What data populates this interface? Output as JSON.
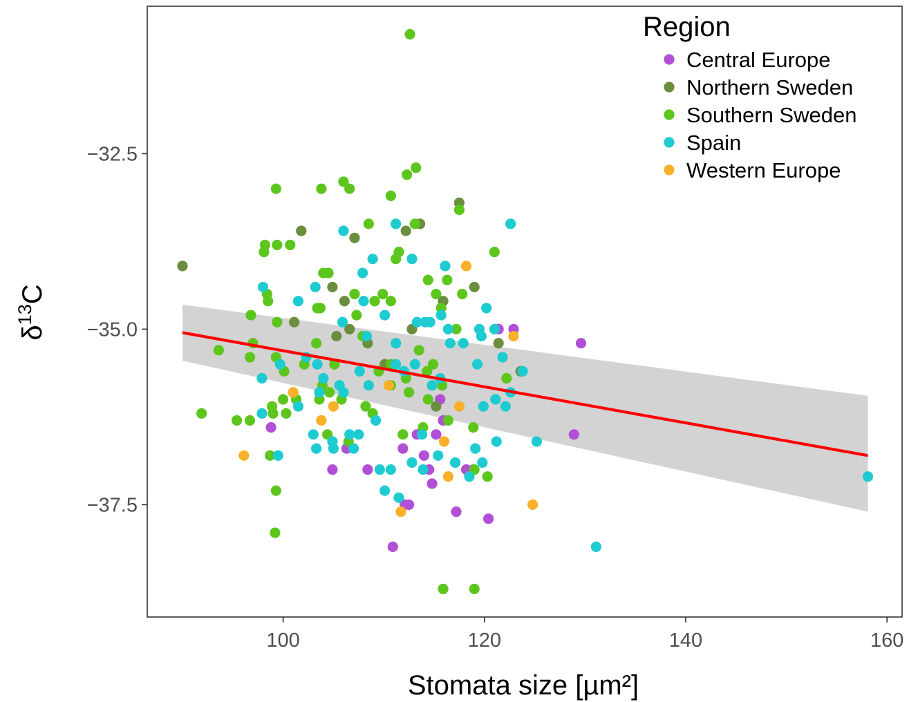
{
  "chart_data": {
    "type": "scatter",
    "title": "",
    "xlabel": "Stomata size [µm²]",
    "ylabel": {
      "base": "δ",
      "superscript": "13",
      "suffix": "C"
    },
    "xlim": [
      86.5,
      161.5
    ],
    "ylim": [
      -39.1,
      -30.4
    ],
    "x_ticks": [
      100,
      120,
      140,
      160
    ],
    "x_tick_labels": [
      "100",
      "120",
      "140",
      "160"
    ],
    "y_ticks": [
      -32.5,
      -35.0,
      -37.5
    ],
    "y_tick_labels": [
      "−32.5",
      "−35.0",
      "−37.5"
    ],
    "grid": false,
    "legend": {
      "title": "Region",
      "position": "top-right"
    },
    "series": [
      {
        "name": "Central Europe",
        "color": "#b14fd6",
        "points": [
          [
            98.8,
            -36.4
          ],
          [
            108.4,
            -37.0
          ],
          [
            104.9,
            -37.0
          ],
          [
            106.3,
            -36.7
          ],
          [
            110.9,
            -38.1
          ],
          [
            111.9,
            -36.7
          ],
          [
            112.1,
            -37.5
          ],
          [
            112.5,
            -37.5
          ],
          [
            113.3,
            -36.5
          ],
          [
            114.0,
            -36.8
          ],
          [
            114.8,
            -37.2
          ],
          [
            114.5,
            -37.0
          ],
          [
            115.2,
            -36.5
          ],
          [
            115.9,
            -36.3
          ],
          [
            115.6,
            -36.0
          ],
          [
            117.2,
            -37.6
          ],
          [
            118.2,
            -37.0
          ],
          [
            118.9,
            -37.0
          ],
          [
            120.4,
            -37.7
          ],
          [
            121.4,
            -35.0
          ],
          [
            122.9,
            -35.0
          ],
          [
            128.9,
            -36.5
          ],
          [
            129.6,
            -35.2
          ]
        ]
      },
      {
        "name": "Northern Sweden",
        "color": "#6b8e3e",
        "points": [
          [
            90.0,
            -34.1
          ],
          [
            101.8,
            -33.6
          ],
          [
            101.1,
            -34.9
          ],
          [
            104.9,
            -34.4
          ],
          [
            105.3,
            -35.1
          ],
          [
            106.1,
            -34.6
          ],
          [
            106.6,
            -35.0
          ],
          [
            107.1,
            -33.7
          ],
          [
            108.4,
            -35.2
          ],
          [
            110.1,
            -35.5
          ],
          [
            112.2,
            -33.6
          ],
          [
            112.8,
            -35.0
          ],
          [
            113.6,
            -33.5
          ],
          [
            115.2,
            -36.1
          ],
          [
            115.9,
            -34.6
          ],
          [
            117.5,
            -33.2
          ],
          [
            119.0,
            -34.4
          ],
          [
            121.4,
            -35.2
          ],
          [
            123.6,
            -35.6
          ]
        ]
      },
      {
        "name": "Southern Sweden",
        "color": "#5cc61c",
        "points": [
          [
            112.6,
            -30.8
          ],
          [
            99.3,
            -33.0
          ],
          [
            98.2,
            -33.8
          ],
          [
            98.1,
            -33.9
          ],
          [
            99.4,
            -33.8
          ],
          [
            100.7,
            -33.8
          ],
          [
            103.8,
            -33.0
          ],
          [
            106.0,
            -32.9
          ],
          [
            106.6,
            -33.0
          ],
          [
            110.7,
            -33.1
          ],
          [
            112.3,
            -32.8
          ],
          [
            113.2,
            -32.7
          ],
          [
            108.5,
            -33.5
          ],
          [
            111.5,
            -33.9
          ],
          [
            113.1,
            -33.5
          ],
          [
            117.5,
            -33.3
          ],
          [
            121.0,
            -33.9
          ],
          [
            98.4,
            -34.5
          ],
          [
            98.5,
            -34.6
          ],
          [
            96.8,
            -34.8
          ],
          [
            99.4,
            -34.9
          ],
          [
            104.0,
            -34.2
          ],
          [
            104.5,
            -34.2
          ],
          [
            107.1,
            -34.5
          ],
          [
            107.3,
            -34.8
          ],
          [
            109.1,
            -34.6
          ],
          [
            109.9,
            -34.5
          ],
          [
            110.7,
            -34.6
          ],
          [
            111.2,
            -34.0
          ],
          [
            114.4,
            -34.3
          ],
          [
            115.2,
            -34.5
          ],
          [
            115.7,
            -34.7
          ],
          [
            116.3,
            -34.3
          ],
          [
            117.8,
            -34.5
          ],
          [
            103.4,
            -34.7
          ],
          [
            103.7,
            -34.7
          ],
          [
            97.0,
            -35.2
          ],
          [
            93.6,
            -35.3
          ],
          [
            96.7,
            -35.4
          ],
          [
            99.3,
            -35.4
          ],
          [
            100.1,
            -35.6
          ],
          [
            102.1,
            -35.5
          ],
          [
            103.3,
            -35.2
          ],
          [
            103.9,
            -35.8
          ],
          [
            104.6,
            -35.9
          ],
          [
            105.1,
            -35.5
          ],
          [
            107.9,
            -35.1
          ],
          [
            109.5,
            -35.6
          ],
          [
            110.7,
            -35.5
          ],
          [
            112.2,
            -35.7
          ],
          [
            113.5,
            -35.3
          ],
          [
            114.3,
            -35.6
          ],
          [
            114.9,
            -35.5
          ],
          [
            115.8,
            -35.8
          ],
          [
            117.2,
            -35.0
          ],
          [
            122.2,
            -35.7
          ],
          [
            100.0,
            -36.0
          ],
          [
            98.9,
            -36.1
          ],
          [
            101.3,
            -36.0
          ],
          [
            103.6,
            -36.0
          ],
          [
            105.8,
            -36.0
          ],
          [
            108.2,
            -36.1
          ],
          [
            108.9,
            -36.2
          ],
          [
            110.7,
            -35.8
          ],
          [
            112.5,
            -35.9
          ],
          [
            114.4,
            -36.0
          ],
          [
            116.4,
            -36.3
          ],
          [
            118.9,
            -36.4
          ],
          [
            99.0,
            -36.2
          ],
          [
            96.7,
            -36.3
          ],
          [
            95.4,
            -36.3
          ],
          [
            91.9,
            -36.2
          ],
          [
            100.3,
            -36.2
          ],
          [
            104.4,
            -36.5
          ],
          [
            106.5,
            -36.6
          ],
          [
            111.9,
            -36.5
          ],
          [
            113.9,
            -36.4
          ],
          [
            98.7,
            -36.8
          ],
          [
            99.3,
            -37.3
          ],
          [
            99.2,
            -37.9
          ],
          [
            119.0,
            -37.0
          ],
          [
            120.3,
            -37.1
          ],
          [
            115.9,
            -38.7
          ],
          [
            119.0,
            -38.7
          ]
        ]
      },
      {
        "name": "Spain",
        "color": "#1ecbd0",
        "points": [
          [
            122.6,
            -33.5
          ],
          [
            111.2,
            -33.5
          ],
          [
            106.0,
            -33.6
          ],
          [
            108.9,
            -34.0
          ],
          [
            112.8,
            -34.0
          ],
          [
            116.1,
            -34.1
          ],
          [
            98.0,
            -34.4
          ],
          [
            101.5,
            -34.6
          ],
          [
            103.2,
            -34.4
          ],
          [
            107.9,
            -34.2
          ],
          [
            108.0,
            -34.6
          ],
          [
            110.1,
            -34.8
          ],
          [
            113.3,
            -34.9
          ],
          [
            114.1,
            -34.9
          ],
          [
            114.6,
            -34.9
          ],
          [
            115.7,
            -34.8
          ],
          [
            116.6,
            -35.2
          ],
          [
            119.5,
            -35.0
          ],
          [
            119.7,
            -35.1
          ],
          [
            120.2,
            -34.7
          ],
          [
            121.0,
            -35.0
          ],
          [
            121.8,
            -35.4
          ],
          [
            97.9,
            -35.7
          ],
          [
            99.7,
            -35.5
          ],
          [
            101.5,
            -36.1
          ],
          [
            102.3,
            -35.4
          ],
          [
            103.4,
            -35.5
          ],
          [
            103.6,
            -35.9
          ],
          [
            104.0,
            -35.7
          ],
          [
            105.9,
            -34.9
          ],
          [
            105.6,
            -35.8
          ],
          [
            106.0,
            -35.9
          ],
          [
            107.6,
            -35.6
          ],
          [
            108.3,
            -35.1
          ],
          [
            108.5,
            -35.8
          ],
          [
            109.2,
            -36.3
          ],
          [
            111.2,
            -35.2
          ],
          [
            111.2,
            -35.5
          ],
          [
            112.0,
            -35.6
          ],
          [
            113.1,
            -35.5
          ],
          [
            113.8,
            -36.5
          ],
          [
            114.8,
            -35.8
          ],
          [
            115.6,
            -35.7
          ],
          [
            116.4,
            -35.0
          ],
          [
            117.9,
            -35.2
          ],
          [
            119.3,
            -35.5
          ],
          [
            119.9,
            -36.1
          ],
          [
            121.1,
            -36.0
          ],
          [
            122.1,
            -36.1
          ],
          [
            122.6,
            -35.9
          ],
          [
            123.8,
            -35.6
          ],
          [
            97.9,
            -36.2
          ],
          [
            99.5,
            -36.8
          ],
          [
            103.0,
            -36.5
          ],
          [
            103.3,
            -36.7
          ],
          [
            104.9,
            -36.6
          ],
          [
            105.0,
            -36.7
          ],
          [
            106.6,
            -36.5
          ],
          [
            107.0,
            -36.7
          ],
          [
            107.5,
            -36.5
          ],
          [
            109.6,
            -37.0
          ],
          [
            110.1,
            -37.3
          ],
          [
            110.7,
            -37.0
          ],
          [
            111.5,
            -37.4
          ],
          [
            112.8,
            -36.9
          ],
          [
            113.9,
            -37.0
          ],
          [
            115.4,
            -36.8
          ],
          [
            117.1,
            -36.9
          ],
          [
            118.5,
            -37.1
          ],
          [
            119.1,
            -36.7
          ],
          [
            119.8,
            -36.9
          ],
          [
            121.2,
            -36.6
          ],
          [
            125.2,
            -36.6
          ],
          [
            131.1,
            -38.1
          ],
          [
            158.1,
            -37.1
          ]
        ]
      },
      {
        "name": "Western Europe",
        "color": "#fbb029",
        "points": [
          [
            118.2,
            -34.1
          ],
          [
            122.9,
            -35.1
          ],
          [
            110.5,
            -35.8
          ],
          [
            101.0,
            -35.9
          ],
          [
            96.1,
            -36.8
          ],
          [
            103.8,
            -36.3
          ],
          [
            105.0,
            -36.1
          ],
          [
            116.0,
            -36.6
          ],
          [
            117.5,
            -36.1
          ],
          [
            116.4,
            -37.1
          ],
          [
            111.7,
            -37.6
          ],
          [
            124.8,
            -37.5
          ]
        ]
      }
    ],
    "regression": {
      "color": "#ff0000",
      "band_color": "#d3d3d3",
      "x": [
        90.0,
        158.1
      ],
      "y": [
        -35.05,
        -36.8
      ],
      "ci_lower": [
        -35.45,
        -37.6
      ],
      "ci_upper": [
        -34.65,
        -35.95
      ]
    }
  }
}
